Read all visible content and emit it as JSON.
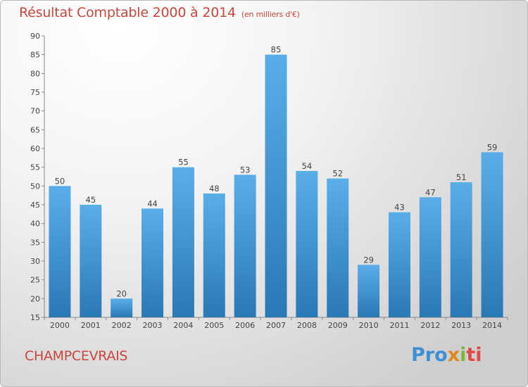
{
  "header": {
    "title": "Résultat Comptable 2000 à 2014",
    "subtitle": "(en milliers d'€)"
  },
  "footer": {
    "commune": "CHAMPCEVRAIS",
    "logo_parts": [
      "Pro",
      "x",
      "i",
      "ti"
    ]
  },
  "colors": {
    "bar_top": "#5aaee8",
    "bar_bottom": "#2a78b4",
    "text_accent": "#c8463c"
  },
  "chart_data": {
    "type": "bar",
    "title": "Résultat Comptable 2000 à 2014",
    "subtitle": "(en milliers d'€)",
    "xlabel": "",
    "ylabel": "",
    "categories": [
      "2000",
      "2001",
      "2002",
      "2003",
      "2004",
      "2005",
      "2006",
      "2007",
      "2008",
      "2009",
      "2010",
      "2011",
      "2012",
      "2013",
      "2014"
    ],
    "values": [
      50,
      45,
      20,
      44,
      55,
      48,
      53,
      85,
      54,
      52,
      29,
      43,
      47,
      51,
      59
    ],
    "ylim": [
      15,
      90
    ],
    "yticks": [
      15,
      20,
      25,
      30,
      35,
      40,
      45,
      50,
      55,
      60,
      65,
      70,
      75,
      80,
      85,
      90
    ],
    "grid": false,
    "data_labels": true
  }
}
